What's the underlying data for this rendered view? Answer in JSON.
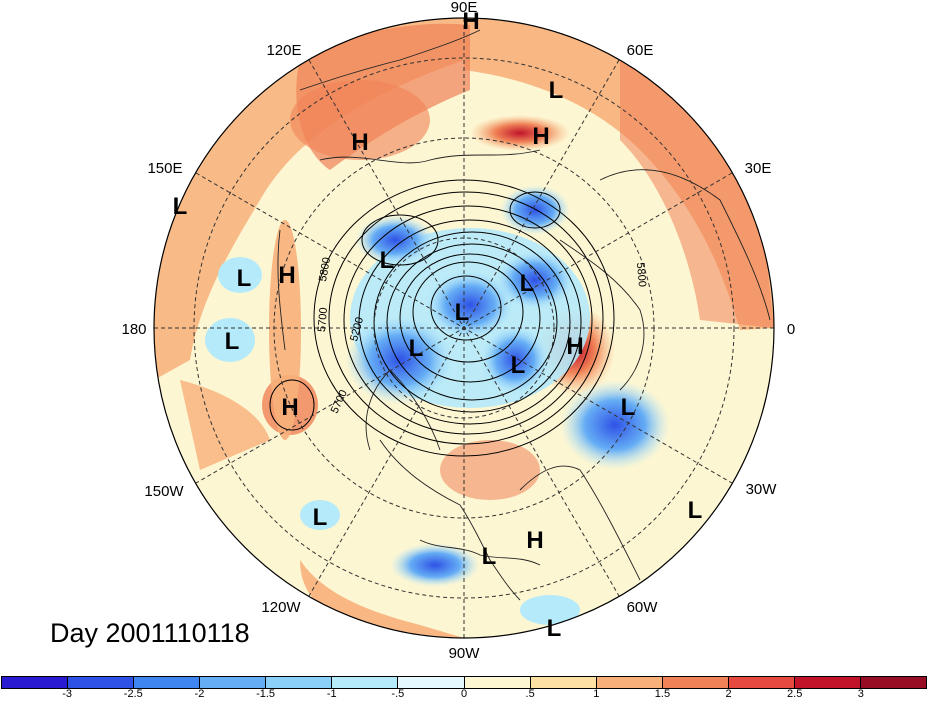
{
  "title": "Day 2001110118",
  "longitude_labels": {
    "deg90E": "90E",
    "deg60E": "60E",
    "deg30E": "30E",
    "deg0": "0",
    "deg30W": "30W",
    "deg60W": "60W",
    "deg90W": "90W",
    "deg120W": "120W",
    "deg150W": "150W",
    "deg180": "180",
    "deg150E": "150E",
    "deg120E": "120E"
  },
  "contour_labels": [
    "5800",
    "5700",
    "5200",
    "5700",
    "5800"
  ],
  "pressure_centers": [
    "H",
    "L",
    "H",
    "H",
    "L",
    "L",
    "H",
    "L",
    "L",
    "L",
    "L",
    "L",
    "H",
    "L",
    "L",
    "H",
    "L",
    "L",
    "L",
    "H",
    "L",
    "L",
    "L"
  ],
  "colorbar": {
    "ticks": [
      "-3",
      "-2.5",
      "-2",
      "-1.5",
      "-1",
      "-.5",
      "0",
      ".5",
      "1",
      "1.5",
      "2",
      "2.5",
      "3"
    ],
    "colors": [
      "#2a1ad2",
      "#2f52e6",
      "#3f86f0",
      "#65adf5",
      "#8ad0f8",
      "#b5eafb",
      "#e4f8fd",
      "#fdf6d2",
      "#fde0a3",
      "#f7b07a",
      "#f08257",
      "#e5493f",
      "#c1142b",
      "#970d24"
    ]
  }
}
